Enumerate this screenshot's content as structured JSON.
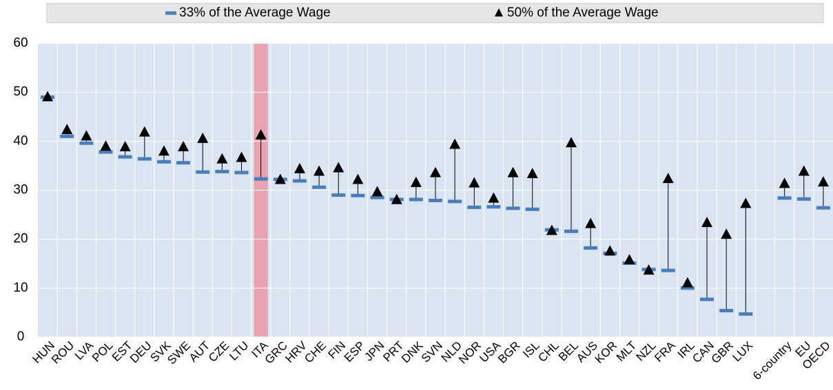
{
  "chart_data": {
    "type": "dot-range",
    "categories": [
      "HUN",
      "ROU",
      "LVA",
      "POL",
      "EST",
      "DEU",
      "SVK",
      "SWE",
      "AUT",
      "CZE",
      "LTU",
      "ITA",
      "GRC",
      "HRV",
      "CHE",
      "FIN",
      "ESP",
      "JPN",
      "PRT",
      "DNK",
      "SVN",
      "NLD",
      "NOR",
      "USA",
      "BGR",
      "ISL",
      "CHL",
      "BEL",
      "AUS",
      "KOR",
      "MLT",
      "NZL",
      "FRA",
      "IRL",
      "CAN",
      "GBR",
      "LUX",
      null,
      "6-country",
      "EU",
      "OECD"
    ],
    "series": [
      {
        "name": "33% of the Average Wage",
        "color": "#4a7ebb",
        "marker": "dash",
        "values": [
          49,
          41,
          39.6,
          37.8,
          36.8,
          36.4,
          35.8,
          35.6,
          33.7,
          33.8,
          33.6,
          32.3,
          32.2,
          31.9,
          30.6,
          29,
          28.9,
          28.5,
          28.1,
          28.1,
          27.9,
          27.7,
          26.5,
          26.6,
          26.3,
          26.1,
          21.9,
          21.6,
          18.2,
          17.1,
          15.1,
          13.8,
          13.6,
          10,
          7.7,
          5.4,
          4.7,
          null,
          28.4,
          28.2,
          26.4
        ]
      },
      {
        "name": "50% of the Average Wage",
        "color": "#000000",
        "marker": "triangle",
        "values": [
          49,
          42.3,
          41,
          38.9,
          38.8,
          41.8,
          37.9,
          38.8,
          40.5,
          36.3,
          36.6,
          41.2,
          32.1,
          34.3,
          33.8,
          34.5,
          32.1,
          29.6,
          28,
          31.5,
          33.5,
          39.3,
          31.4,
          28.3,
          33.5,
          33.3,
          21.7,
          39.6,
          23.1,
          17.5,
          15.7,
          13.6,
          32.3,
          11,
          23.3,
          20.9,
          27.2,
          null,
          31.3,
          33.8,
          31.6
        ]
      }
    ],
    "highlight": "ITA",
    "ylim": [
      0,
      60
    ],
    "yticks": [
      0,
      10,
      20,
      30,
      40,
      50,
      60
    ],
    "grid": true
  }
}
